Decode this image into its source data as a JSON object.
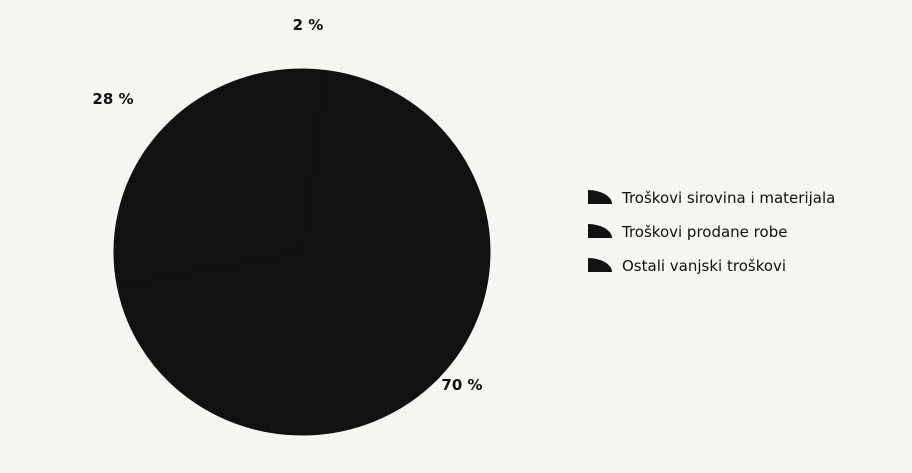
{
  "chart_data": {
    "type": "pie",
    "slices": [
      {
        "label": "Troškovi sirovina i materijala",
        "value": 2,
        "value_label": "2 %"
      },
      {
        "label": "Troškovi prodane robe",
        "value": 70,
        "value_label": "70 %"
      },
      {
        "label": "Ostali vanjski troškovi",
        "value": 28,
        "value_label": "28 %"
      }
    ],
    "legend_position": "right",
    "colors": {
      "slice": "#111111",
      "text": "#111111",
      "background": "#f5f5f1"
    }
  }
}
